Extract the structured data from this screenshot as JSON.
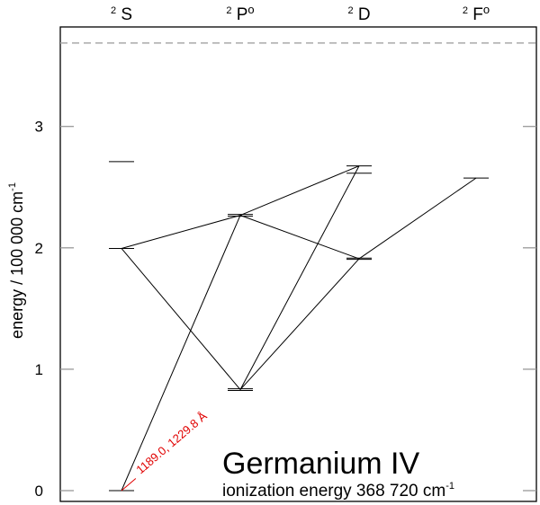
{
  "columns": [
    {
      "id": "S",
      "label": "S",
      "sup": "2",
      "odd": false
    },
    {
      "id": "P",
      "label": "P",
      "sup": "2",
      "odd": true
    },
    {
      "id": "D",
      "label": "D",
      "sup": "2",
      "odd": false
    },
    {
      "id": "F",
      "label": "F",
      "sup": "2",
      "odd": true
    }
  ],
  "axis": {
    "ylabel_main": "energy / 100 000 cm",
    "ylabel_sup": "-1",
    "ymin": 0,
    "ymax": 3.7,
    "ticks": [
      {
        "value": 0,
        "label": "0"
      },
      {
        "value": 1,
        "label": "1"
      },
      {
        "value": 2,
        "label": "2"
      },
      {
        "value": 3,
        "label": "3"
      }
    ]
  },
  "ionization_limit": 3.6872,
  "levels": [
    {
      "col": "S",
      "e": 0.0
    },
    {
      "col": "S",
      "e": 1.995
    },
    {
      "col": "S",
      "e": 2.71
    },
    {
      "col": "P",
      "e": 0.8255
    },
    {
      "col": "P",
      "e": 0.8395
    },
    {
      "col": "P",
      "e": 2.26
    },
    {
      "col": "P",
      "e": 2.275
    },
    {
      "col": "D",
      "e": 1.905
    },
    {
      "col": "D",
      "e": 1.915
    },
    {
      "col": "D",
      "e": 2.615
    },
    {
      "col": "D",
      "e": 2.675
    },
    {
      "col": "F",
      "e": 2.575
    }
  ],
  "transitions": [
    {
      "from": {
        "col": "S",
        "e": 0.0
      },
      "to": {
        "col": "P",
        "e": 2.268
      }
    },
    {
      "from": {
        "col": "S",
        "e": 1.995
      },
      "to": {
        "col": "P",
        "e": 0.832
      }
    },
    {
      "from": {
        "col": "S",
        "e": 1.995
      },
      "to": {
        "col": "P",
        "e": 2.268
      }
    },
    {
      "from": {
        "col": "P",
        "e": 0.832
      },
      "to": {
        "col": "D",
        "e": 1.91
      }
    },
    {
      "from": {
        "col": "P",
        "e": 0.832
      },
      "to": {
        "col": "D",
        "e": 2.675
      }
    },
    {
      "from": {
        "col": "P",
        "e": 2.268
      },
      "to": {
        "col": "D",
        "e": 1.91
      }
    },
    {
      "from": {
        "col": "P",
        "e": 2.268
      },
      "to": {
        "col": "D",
        "e": 2.675
      }
    },
    {
      "from": {
        "col": "D",
        "e": 1.91
      },
      "to": {
        "col": "F",
        "e": 2.575
      }
    }
  ],
  "highlight": {
    "from": {
      "col": "S",
      "e": 0.0
    },
    "to": {
      "col": "P",
      "e": 0.832
    },
    "label": "1189.0, 1229.8 Å",
    "color": "#e00000"
  },
  "title": "Germanium IV",
  "subtitle_main": "ionization energy 368 720 cm",
  "subtitle_sup": "-1",
  "colors": {
    "line": "#000000",
    "limit": "#aaaaaa",
    "tick": "#999999",
    "highlight": "#e00000"
  }
}
